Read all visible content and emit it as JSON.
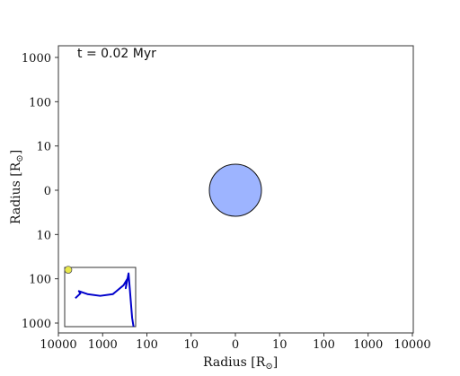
{
  "chart_data": {
    "type": "scatter",
    "annotation": "t = 0.02 Myr",
    "xlabel": "Radius [R",
    "ylabel": "Radius [R",
    "label_symbol": "⊙",
    "label_close": "]",
    "x_tick_labels": [
      "10000",
      "1000",
      "100",
      "10",
      "0",
      "10",
      "100",
      "1000",
      "10000"
    ],
    "y_tick_labels": [
      "1000",
      "100",
      "10",
      "0",
      "10",
      "100",
      "1000"
    ],
    "scale": "symmetric-log",
    "xlim": [
      -10000,
      10000
    ],
    "ylim": [
      -1000,
      1000
    ],
    "star": {
      "x": 0,
      "y": 0,
      "radius": 3,
      "color": "#9db4ff"
    },
    "inset": {
      "type": "line",
      "color": "#0000cc",
      "marker_color": "#e8e84a",
      "points": [
        [
          0.15,
          0.48
        ],
        [
          0.22,
          0.56
        ],
        [
          0.2,
          0.6
        ],
        [
          0.32,
          0.55
        ],
        [
          0.5,
          0.52
        ],
        [
          0.68,
          0.55
        ],
        [
          0.83,
          0.7
        ],
        [
          0.88,
          0.8
        ],
        [
          0.86,
          0.65
        ],
        [
          0.9,
          0.9
        ],
        [
          0.95,
          0.15
        ],
        [
          0.97,
          0.0
        ]
      ],
      "marker": [
        0.05,
        0.96
      ]
    }
  }
}
